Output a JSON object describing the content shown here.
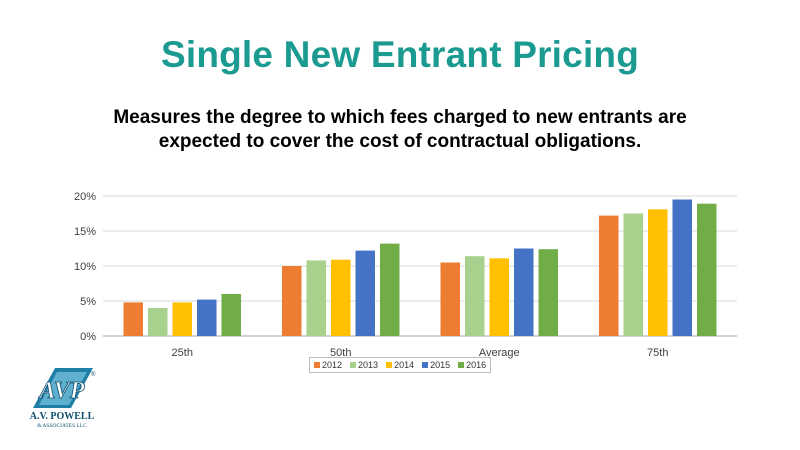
{
  "title": "Single New Entrant Pricing",
  "subtitle_lines": [
    "Measures the degree to which fees charged to new entrants are",
    "expected to cover the cost of contractual obligations."
  ],
  "logo": {
    "letters": "AVP",
    "name": "A.V. POWELL",
    "sub": "& ASSOCIATES LLC",
    "mark": "®"
  },
  "chart_data": {
    "type": "bar",
    "categories": [
      "25th",
      "50th",
      "Average",
      "75th"
    ],
    "series": [
      {
        "name": "2012",
        "color": "#ed7d31",
        "values": [
          4.8,
          10.0,
          10.5,
          17.2
        ]
      },
      {
        "name": "2013",
        "color": "#a9d18e",
        "values": [
          4.0,
          10.8,
          11.4,
          17.5
        ]
      },
      {
        "name": "2014",
        "color": "#ffc000",
        "values": [
          4.8,
          10.9,
          11.1,
          18.1
        ]
      },
      {
        "name": "2015",
        "color": "#4472c4",
        "values": [
          5.2,
          12.2,
          12.5,
          19.5
        ]
      },
      {
        "name": "2016",
        "color": "#70ad47",
        "values": [
          6.0,
          13.2,
          12.4,
          18.9
        ]
      }
    ],
    "ylim": [
      0,
      20
    ],
    "yticks": [
      0,
      5,
      10,
      15,
      20
    ],
    "ytick_labels": [
      "0%",
      "5%",
      "10%",
      "15%",
      "20%"
    ],
    "grid": true,
    "legend_position": "bottom"
  }
}
